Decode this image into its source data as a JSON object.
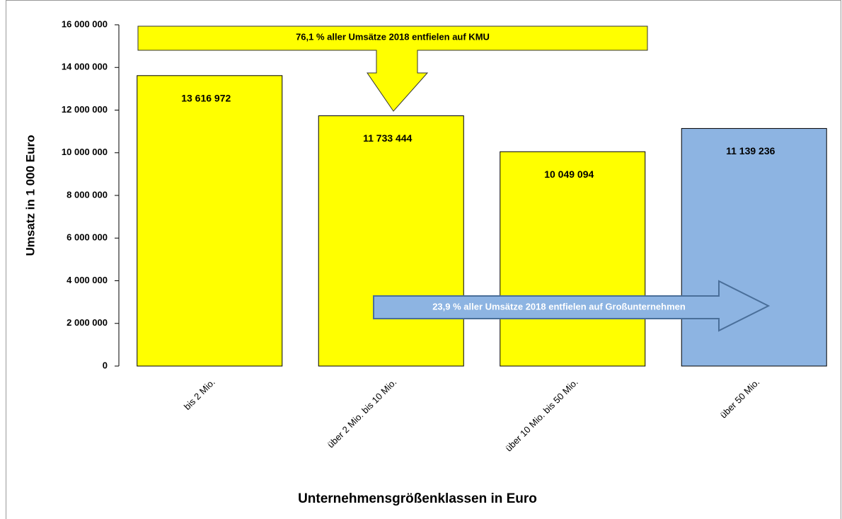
{
  "chart_data": {
    "type": "bar",
    "x_label": "Unternehmensgrößenklassen in Euro",
    "y_label": "Umsatz in 1 000 Euro",
    "categories": [
      "bis 2 Mio.",
      "über 2 Mio. bis 10 Mio.",
      "über 10 Mio. bis 50 Mio.",
      "über 50 Mio."
    ],
    "values": [
      13616972,
      11733444,
      10049094,
      11139236
    ],
    "value_labels": [
      "13 616 972",
      "11 733 444",
      "10 049 094",
      "11 139 236"
    ],
    "colors": [
      "#ffff00",
      "#ffff00",
      "#ffff00",
      "#8db4e2"
    ],
    "ylim": [
      0,
      16000000
    ],
    "yticks": [
      0,
      {
        "value": 2000000,
        "label": "2 000 000"
      },
      {
        "value": 4000000,
        "label": "4 000 000"
      },
      {
        "value": 6000000,
        "label": "6 000 000"
      },
      {
        "value": 8000000,
        "label": "8 000 000"
      },
      {
        "value": 10000000,
        "label": "10 000 000"
      },
      {
        "value": 12000000,
        "label": "12 000 000"
      },
      {
        "value": 14000000,
        "label": "14 000 000"
      },
      {
        "value": 16000000,
        "label": "16 000 000"
      }
    ],
    "grid": false,
    "annotations": [
      "76,1 % aller Umsätze 2018 entfielen auf KMU",
      "23,9 % aller Umsätze 2018 entfielen auf Großunternehmen"
    ]
  }
}
